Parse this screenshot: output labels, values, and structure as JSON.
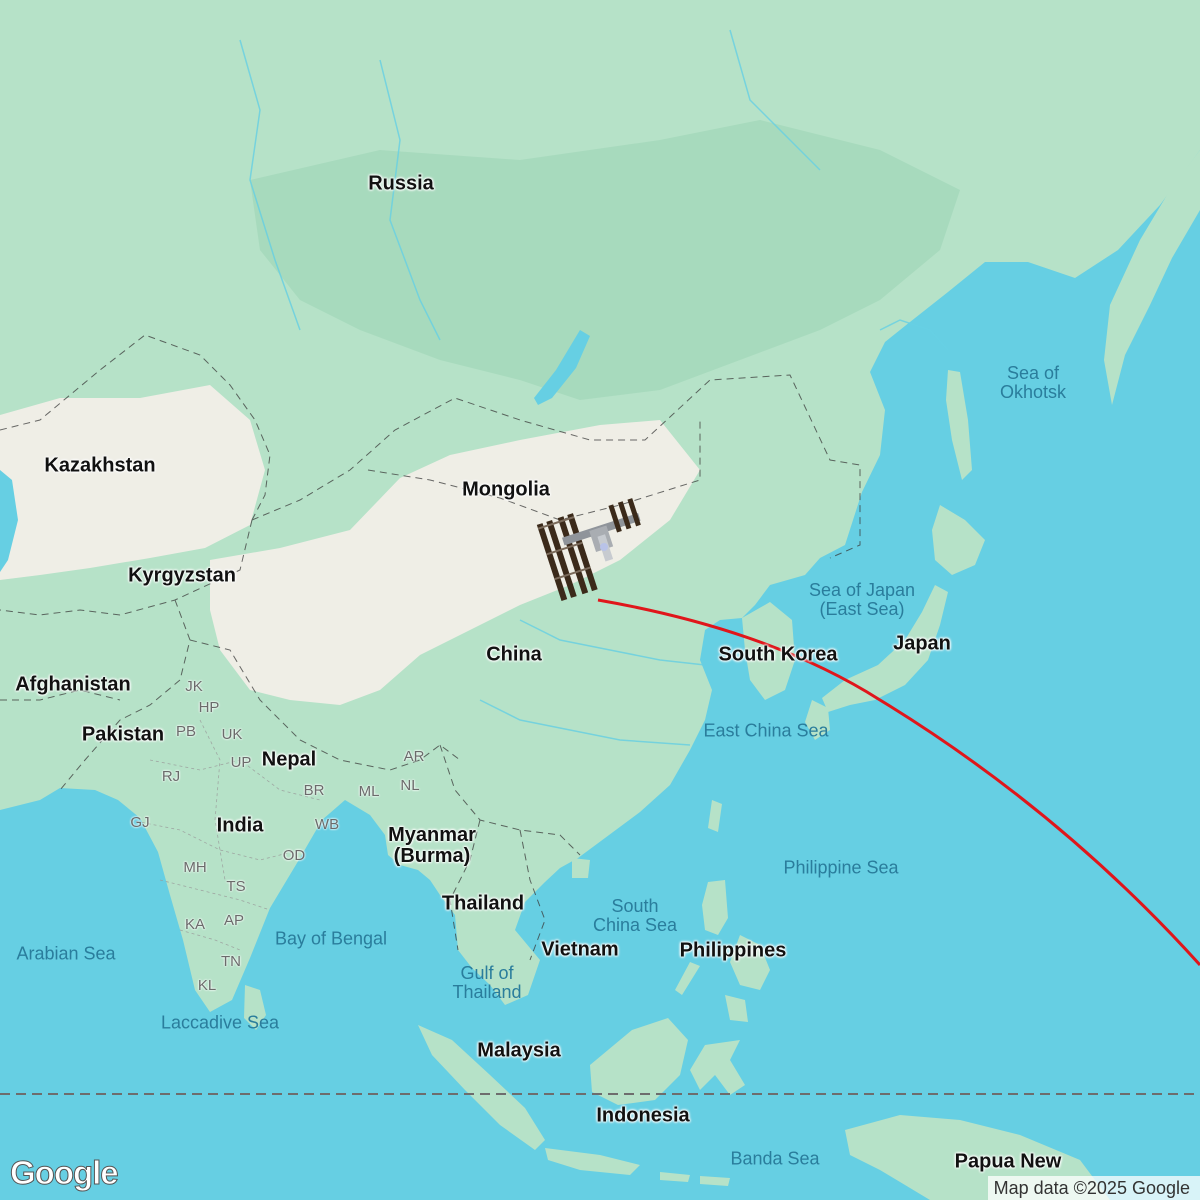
{
  "map": {
    "colors": {
      "water": "#66cfe3",
      "land": "#b6e2c8",
      "forest": "#9ad3b5",
      "desert": "#efeee6",
      "track": "#e0161b",
      "equator": "#6d6d6d"
    },
    "countries": [
      {
        "key": "russia",
        "text": "Russia"
      },
      {
        "key": "kazakhstan",
        "text": "Kazakhstan"
      },
      {
        "key": "mongolia",
        "text": "Mongolia"
      },
      {
        "key": "kyrgyzstan",
        "text": "Kyrgyzstan"
      },
      {
        "key": "china",
        "text": "China"
      },
      {
        "key": "south_korea",
        "text": "South Korea"
      },
      {
        "key": "japan",
        "text": "Japan"
      },
      {
        "key": "afghanistan",
        "text": "Afghanistan"
      },
      {
        "key": "pakistan",
        "text": "Pakistan"
      },
      {
        "key": "nepal",
        "text": "Nepal"
      },
      {
        "key": "india",
        "text": "India"
      },
      {
        "key": "myanmar",
        "text": "Myanmar\n(Burma)"
      },
      {
        "key": "thailand",
        "text": "Thailand"
      },
      {
        "key": "vietnam",
        "text": "Vietnam"
      },
      {
        "key": "philippines",
        "text": "Philippines"
      },
      {
        "key": "malaysia",
        "text": "Malaysia"
      },
      {
        "key": "indonesia",
        "text": "Indonesia"
      },
      {
        "key": "papua_new_guinea",
        "text": "Papua New"
      }
    ],
    "seas": [
      {
        "key": "sea_of_okhotsk",
        "text": "Sea of\nOkhotsk"
      },
      {
        "key": "sea_of_japan",
        "text": "Sea of Japan\n(East Sea)"
      },
      {
        "key": "east_china_sea",
        "text": "East China Sea"
      },
      {
        "key": "philippine_sea",
        "text": "Philippine Sea"
      },
      {
        "key": "south_china_sea",
        "text": "South\nChina Sea"
      },
      {
        "key": "bay_of_bengal",
        "text": "Bay of Bengal"
      },
      {
        "key": "arabian_sea",
        "text": "Arabian Sea"
      },
      {
        "key": "gulf_of_thailand",
        "text": "Gulf of\nThailand"
      },
      {
        "key": "laccadive_sea",
        "text": "Laccadive Sea"
      },
      {
        "key": "banda_sea",
        "text": "Banda Sea"
      }
    ],
    "states": [
      {
        "key": "jk",
        "text": "JK"
      },
      {
        "key": "hp",
        "text": "HP"
      },
      {
        "key": "pb",
        "text": "PB"
      },
      {
        "key": "uk",
        "text": "UK"
      },
      {
        "key": "up",
        "text": "UP"
      },
      {
        "key": "rj",
        "text": "RJ"
      },
      {
        "key": "gj",
        "text": "GJ"
      },
      {
        "key": "br",
        "text": "BR"
      },
      {
        "key": "wb",
        "text": "WB"
      },
      {
        "key": "ml",
        "text": "ML"
      },
      {
        "key": "ar",
        "text": "AR"
      },
      {
        "key": "nl",
        "text": "NL"
      },
      {
        "key": "mh",
        "text": "MH"
      },
      {
        "key": "od",
        "text": "OD"
      },
      {
        "key": "ts",
        "text": "TS"
      },
      {
        "key": "ka",
        "text": "KA"
      },
      {
        "key": "ap",
        "text": "AP"
      },
      {
        "key": "tn",
        "text": "TN"
      },
      {
        "key": "kl",
        "text": "KL"
      }
    ],
    "marker": {
      "icon": "space-station-icon"
    },
    "attribution": "Map data ©2025 Google",
    "logo": "Google"
  }
}
